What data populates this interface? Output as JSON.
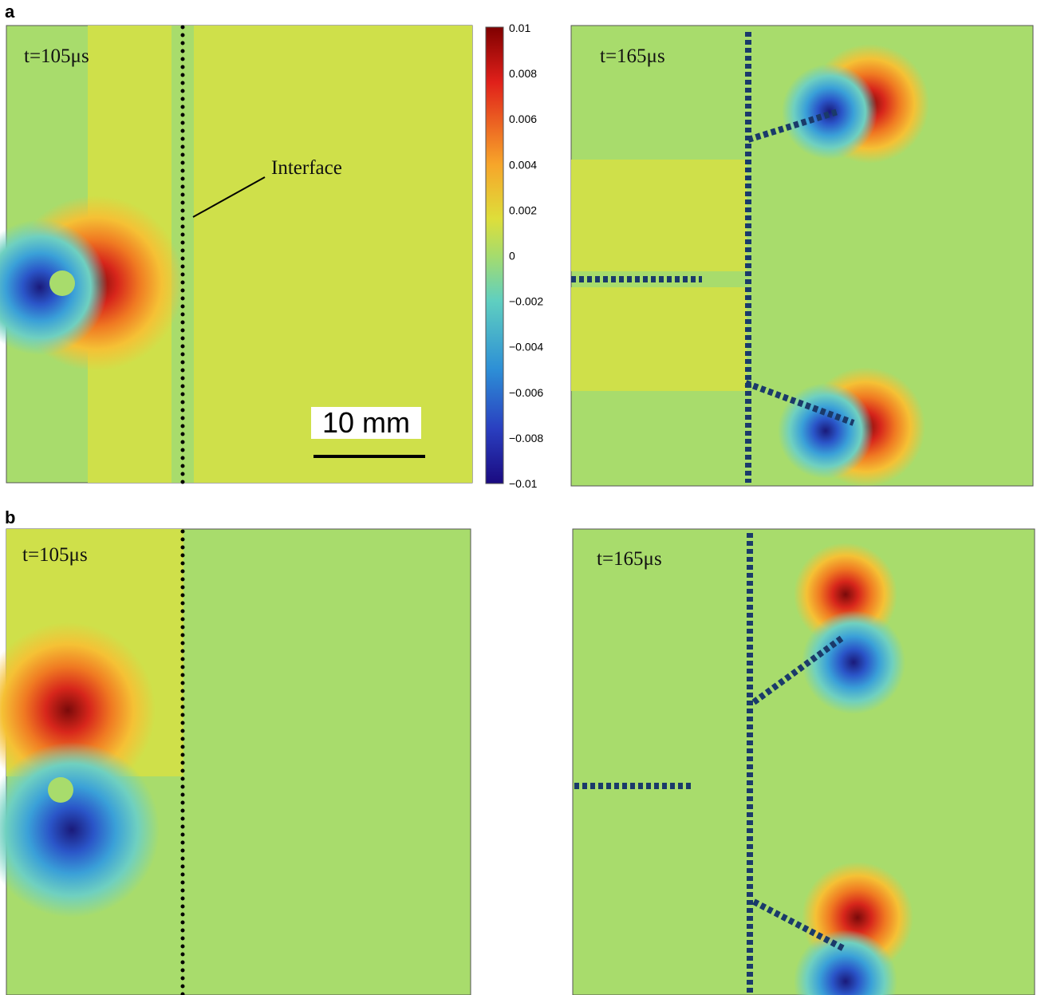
{
  "figure": {
    "panel_a": {
      "label": "a",
      "left_time": "t=105μs",
      "right_time": "t=165μs",
      "interface_label": "Interface",
      "scale_bar": "10 mm"
    },
    "panel_b": {
      "label": "b",
      "left_time": "t=105μs",
      "right_time": "t=165μs"
    },
    "colorbar": {
      "ticks": [
        "0.01",
        "0.008",
        "0.006",
        "0.004",
        "0.002",
        "0",
        "−0.002",
        "−0.004",
        "−0.006",
        "−0.008",
        "−0.01"
      ]
    }
  }
}
